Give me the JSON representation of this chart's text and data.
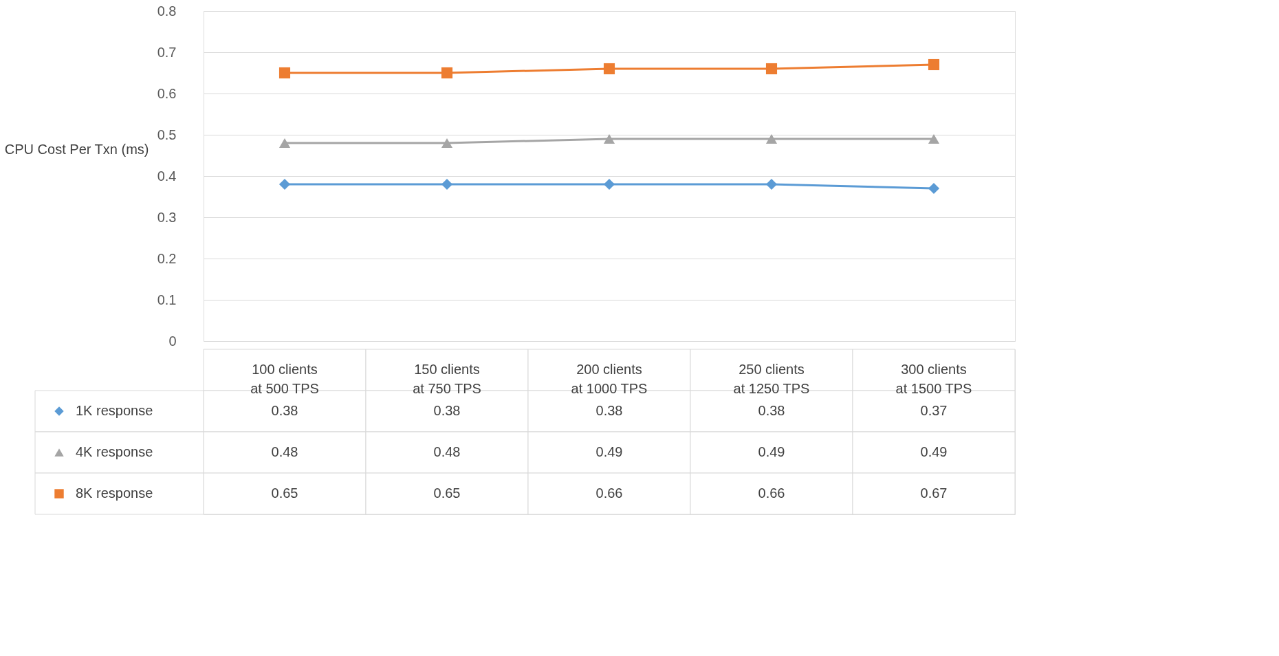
{
  "chart_data": {
    "type": "line",
    "ylabel": "CPU Cost Per Txn (ms)",
    "categories": [
      "100 clients at 500 TPS",
      "150 clients at 750 TPS",
      "200 clients at 1000 TPS",
      "250 clients at 1250 TPS",
      "300 clients at 1500 TPS"
    ],
    "series": [
      {
        "name": "1K response",
        "color": "#5b9bd5",
        "marker": "diamond",
        "values": [
          0.38,
          0.38,
          0.38,
          0.38,
          0.37
        ]
      },
      {
        "name": "4K response",
        "color": "#a5a5a5",
        "marker": "triangle",
        "values": [
          0.48,
          0.48,
          0.49,
          0.49,
          0.49
        ]
      },
      {
        "name": "8K response",
        "color": "#ed7d31",
        "marker": "square",
        "values": [
          0.65,
          0.65,
          0.66,
          0.66,
          0.67
        ]
      }
    ],
    "ylim": [
      0,
      0.8
    ],
    "yticks": [
      0,
      0.1,
      0.2,
      0.3,
      0.4,
      0.5,
      0.6,
      0.7,
      0.8
    ],
    "grid": "y",
    "legend": "bottom left",
    "data_labels": true,
    "line_style": "solid"
  }
}
